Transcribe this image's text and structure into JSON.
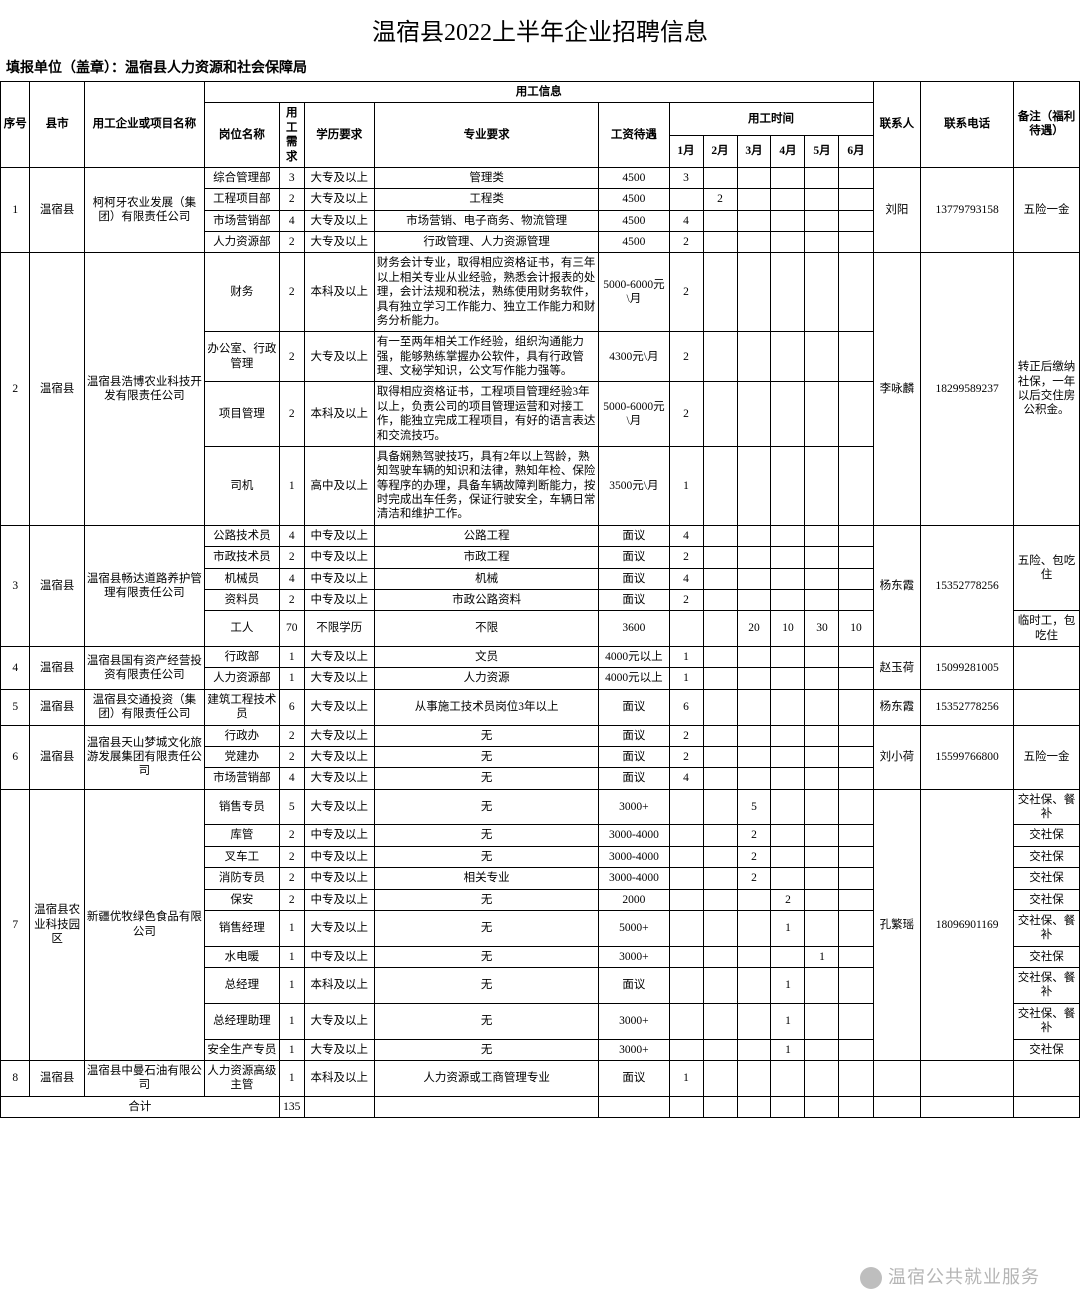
{
  "title": "温宿县2022上半年企业招聘信息",
  "subtitle": "填报单位（盖章）：温宿县人力资源和社会保障局",
  "headers": {
    "no": "序号",
    "city": "县市",
    "company": "用工企业或项目名称",
    "empInfo": "用工信息",
    "post": "岗位名称",
    "need": "用工需求",
    "edu": "学历要求",
    "spec": "专业要求",
    "salary": "工资待遇",
    "timeGroup": "用工时间",
    "months": [
      "1月",
      "2月",
      "3月",
      "4月",
      "5月",
      "6月"
    ],
    "contact": "联系人",
    "tel": "联系电话",
    "note": "备注（福利待遇）",
    "total": "合计"
  },
  "totalNeed": "135",
  "companies": [
    {
      "no": "1",
      "city": "温宿县",
      "company": "柯柯牙农业发展（集团）有限责任公司",
      "contact": "刘阳",
      "tel": "13779793158",
      "note": "五险一金",
      "posts": [
        {
          "post": "综合管理部",
          "need": "3",
          "edu": "大专及以上",
          "spec": "管理类",
          "sal": "4500",
          "m": [
            "3",
            "",
            "",
            "",
            "",
            ""
          ]
        },
        {
          "post": "工程项目部",
          "need": "2",
          "edu": "大专及以上",
          "spec": "工程类",
          "sal": "4500",
          "m": [
            "",
            "2",
            "",
            "",
            "",
            ""
          ]
        },
        {
          "post": "市场营销部",
          "need": "4",
          "edu": "大专及以上",
          "spec": "市场营销、电子商务、物流管理",
          "sal": "4500",
          "m": [
            "4",
            "",
            "",
            "",
            "",
            ""
          ]
        },
        {
          "post": "人力资源部",
          "need": "2",
          "edu": "大专及以上",
          "spec": "行政管理、人力资源管理",
          "sal": "4500",
          "m": [
            "2",
            "",
            "",
            "",
            "",
            ""
          ]
        }
      ]
    },
    {
      "no": "2",
      "city": "温宿县",
      "company": "温宿县浩博农业科技开发有限责任公司",
      "contact": "李咏麟",
      "tel": "18299589237",
      "note": "转正后缴纳社保，一年以后交住房公积金。",
      "posts": [
        {
          "post": "财务",
          "need": "2",
          "edu": "本科及以上",
          "spec": "财务会计专业，取得相应资格证书，有三年以上相关专业从业经验，熟悉会计报表的处理，会计法规和税法，熟练使用财务软件，具有独立学习工作能力、独立工作能力和财务分析能力。",
          "sal": "5000-6000元\\月",
          "m": [
            "2",
            "",
            "",
            "",
            "",
            ""
          ]
        },
        {
          "post": "办公室、行政管理",
          "need": "2",
          "edu": "大专及以上",
          "spec": "有一至两年相关工作经验，组织沟通能力强，能够熟练掌握办公软件，具有行政管理、文秘学知识，公文写作能力强等。",
          "sal": "4300元\\月",
          "m": [
            "2",
            "",
            "",
            "",
            "",
            ""
          ]
        },
        {
          "post": "项目管理",
          "need": "2",
          "edu": "本科及以上",
          "spec": "取得相应资格证书，工程项目管理经验3年以上，负责公司的项目管理运营和对接工作，能独立完成工程项目，有好的语言表达和交流技巧。",
          "sal": "5000-6000元\\月",
          "m": [
            "2",
            "",
            "",
            "",
            "",
            ""
          ]
        },
        {
          "post": "司机",
          "need": "1",
          "edu": "高中及以上",
          "spec": "具备娴熟驾驶技巧，具有2年以上驾龄，熟知驾驶车辆的知识和法律，熟知年检、保险等程序的办理，具备车辆故障判断能力，按时完成出车任务，保证行驶安全，车辆日常清洁和维护工作。",
          "sal": "3500元\\月",
          "m": [
            "1",
            "",
            "",
            "",
            "",
            ""
          ]
        }
      ]
    },
    {
      "no": "3",
      "city": "温宿县",
      "company": "温宿县畅达道路养护管理有限责任公司",
      "contact": "杨东霞",
      "tel": "15352778256",
      "note": "五险、包吃住",
      "noteSpan": 4,
      "extraNotes": [
        "临时工，包吃住"
      ],
      "posts": [
        {
          "post": "公路技术员",
          "need": "4",
          "edu": "中专及以上",
          "spec": "公路工程",
          "sal": "面议",
          "m": [
            "4",
            "",
            "",
            "",
            "",
            ""
          ]
        },
        {
          "post": "市政技术员",
          "need": "2",
          "edu": "中专及以上",
          "spec": "市政工程",
          "sal": "面议",
          "m": [
            "2",
            "",
            "",
            "",
            "",
            ""
          ]
        },
        {
          "post": "机械员",
          "need": "4",
          "edu": "中专及以上",
          "spec": "机械",
          "sal": "面议",
          "m": [
            "4",
            "",
            "",
            "",
            "",
            ""
          ]
        },
        {
          "post": "资料员",
          "need": "2",
          "edu": "中专及以上",
          "spec": "市政公路资料",
          "sal": "面议",
          "m": [
            "2",
            "",
            "",
            "",
            "",
            ""
          ]
        },
        {
          "post": "工人",
          "need": "70",
          "edu": "不限学历",
          "spec": "不限",
          "sal": "3600",
          "m": [
            "",
            "",
            "20",
            "10",
            "30",
            "10"
          ]
        }
      ]
    },
    {
      "no": "4",
      "city": "温宿县",
      "company": "温宿县国有资产经营投资有限责任公司",
      "contact": "赵玉荷",
      "tel": "15099281005",
      "note": "",
      "posts": [
        {
          "post": "行政部",
          "need": "1",
          "edu": "大专及以上",
          "spec": "文员",
          "sal": "4000元以上",
          "m": [
            "1",
            "",
            "",
            "",
            "",
            ""
          ]
        },
        {
          "post": "人力资源部",
          "need": "1",
          "edu": "大专及以上",
          "spec": "人力资源",
          "sal": "4000元以上",
          "m": [
            "1",
            "",
            "",
            "",
            "",
            ""
          ]
        }
      ]
    },
    {
      "no": "5",
      "city": "温宿县",
      "company": "温宿县交通投资（集团）有限责任公司",
      "contact": "杨东霞",
      "tel": "15352778256",
      "note": "",
      "posts": [
        {
          "post": "建筑工程技术员",
          "need": "6",
          "edu": "大专及以上",
          "spec": "从事施工技术员岗位3年以上",
          "sal": "面议",
          "m": [
            "6",
            "",
            "",
            "",
            "",
            ""
          ]
        }
      ]
    },
    {
      "no": "6",
      "city": "温宿县",
      "company": "温宿县天山梦城文化旅游发展集团有限责任公司",
      "contact": "刘小荷",
      "tel": "15599766800",
      "note": "五险一金",
      "posts": [
        {
          "post": "行政办",
          "need": "2",
          "edu": "大专及以上",
          "spec": "无",
          "sal": "面议",
          "m": [
            "2",
            "",
            "",
            "",
            "",
            ""
          ]
        },
        {
          "post": "党建办",
          "need": "2",
          "edu": "大专及以上",
          "spec": "无",
          "sal": "面议",
          "m": [
            "2",
            "",
            "",
            "",
            "",
            ""
          ]
        },
        {
          "post": "市场营销部",
          "need": "4",
          "edu": "大专及以上",
          "spec": "无",
          "sal": "面议",
          "m": [
            "4",
            "",
            "",
            "",
            "",
            ""
          ]
        }
      ]
    },
    {
      "no": "7",
      "city": "温宿县农业科技园区",
      "company": "新疆优牧绿色食品有限公司",
      "contact": "孔繁瑶",
      "tel": "18096901169",
      "note": "",
      "perPostNotes": true,
      "posts": [
        {
          "post": "销售专员",
          "need": "5",
          "edu": "大专及以上",
          "spec": "无",
          "sal": "3000+",
          "m": [
            "",
            "",
            "5",
            "",
            "",
            ""
          ],
          "note": "交社保、餐补"
        },
        {
          "post": "库管",
          "need": "2",
          "edu": "中专及以上",
          "spec": "无",
          "sal": "3000-4000",
          "m": [
            "",
            "",
            "2",
            "",
            "",
            ""
          ],
          "note": "交社保"
        },
        {
          "post": "叉车工",
          "need": "2",
          "edu": "中专及以上",
          "spec": "无",
          "sal": "3000-4000",
          "m": [
            "",
            "",
            "2",
            "",
            "",
            ""
          ],
          "note": "交社保"
        },
        {
          "post": "消防专员",
          "need": "2",
          "edu": "中专及以上",
          "spec": "相关专业",
          "sal": "3000-4000",
          "m": [
            "",
            "",
            "2",
            "",
            "",
            ""
          ],
          "note": "交社保"
        },
        {
          "post": "保安",
          "need": "2",
          "edu": "中专及以上",
          "spec": "无",
          "sal": "2000",
          "m": [
            "",
            "",
            "",
            "2",
            "",
            ""
          ],
          "note": "交社保"
        },
        {
          "post": "销售经理",
          "need": "1",
          "edu": "大专及以上",
          "spec": "无",
          "sal": "5000+",
          "m": [
            "",
            "",
            "",
            "1",
            "",
            ""
          ],
          "note": "交社保、餐补"
        },
        {
          "post": "水电暖",
          "need": "1",
          "edu": "中专及以上",
          "spec": "无",
          "sal": "3000+",
          "m": [
            "",
            "",
            "",
            "",
            "1",
            ""
          ],
          "note": "交社保"
        },
        {
          "post": "总经理",
          "need": "1",
          "edu": "本科及以上",
          "spec": "无",
          "sal": "面议",
          "m": [
            "",
            "",
            "",
            "1",
            "",
            ""
          ],
          "note": "交社保、餐补"
        },
        {
          "post": "总经理助理",
          "need": "1",
          "edu": "大专及以上",
          "spec": "无",
          "sal": "3000+",
          "m": [
            "",
            "",
            "",
            "1",
            "",
            ""
          ],
          "note": "交社保、餐补"
        },
        {
          "post": "安全生产专员",
          "need": "1",
          "edu": "大专及以上",
          "spec": "无",
          "sal": "3000+",
          "m": [
            "",
            "",
            "",
            "1",
            "",
            ""
          ],
          "note": "交社保"
        }
      ]
    },
    {
      "no": "8",
      "city": "温宿县",
      "company": "温宿县中曼石油有限公司",
      "contact": "",
      "tel": "",
      "note": "",
      "posts": [
        {
          "post": "人力资源高级主管",
          "need": "1",
          "edu": "本科及以上",
          "spec": "人力资源或工商管理专业",
          "sal": "面议",
          "m": [
            "1",
            "",
            "",
            "",
            "",
            ""
          ]
        }
      ]
    }
  ],
  "watermark": "温宿公共就业服务"
}
